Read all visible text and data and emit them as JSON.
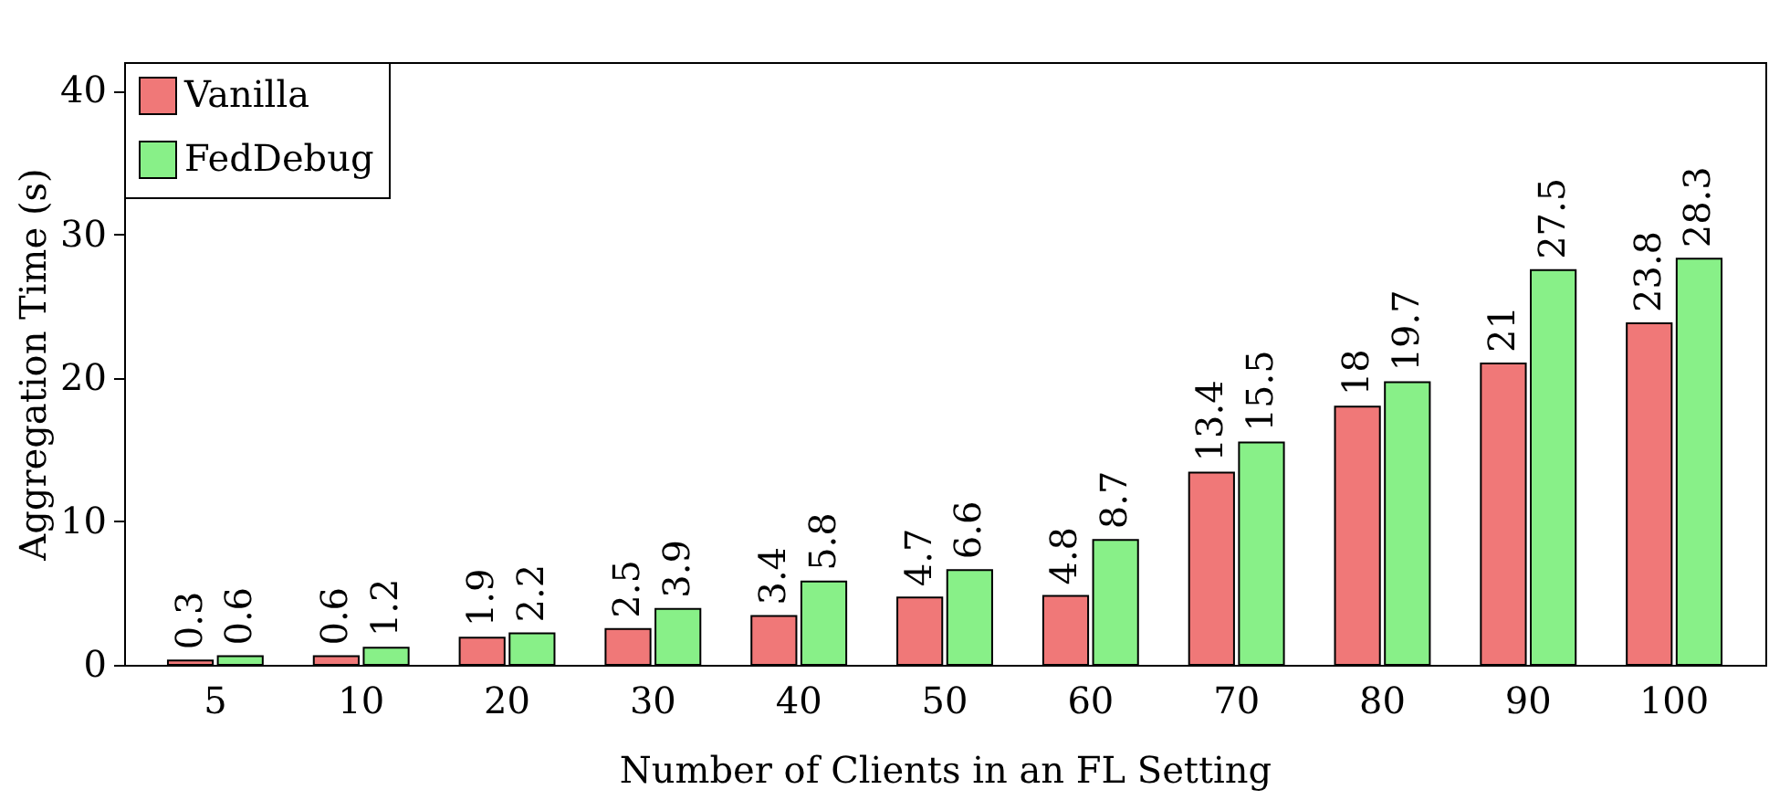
{
  "chart_data": {
    "type": "bar",
    "xlabel": "Number of Clients in an FL Setting",
    "ylabel": "Aggregation Time (s)",
    "categories": [
      "5",
      "10",
      "20",
      "30",
      "40",
      "50",
      "60",
      "70",
      "80",
      "90",
      "100"
    ],
    "series": [
      {
        "name": "Vanilla",
        "color": "#f07878",
        "values": [
          0.3,
          0.6,
          1.9,
          2.5,
          3.4,
          4.7,
          4.8,
          13.4,
          18,
          21,
          23.8
        ]
      },
      {
        "name": "FedDebug",
        "color": "#88f088",
        "values": [
          0.6,
          1.2,
          2.2,
          3.9,
          5.8,
          6.6,
          8.7,
          15.5,
          19.7,
          27.5,
          28.3
        ]
      }
    ],
    "ylim": [
      0,
      42
    ],
    "yticks": [
      0,
      10,
      20,
      30,
      40
    ],
    "grid": false,
    "legend": "top left",
    "data_labels": true
  }
}
